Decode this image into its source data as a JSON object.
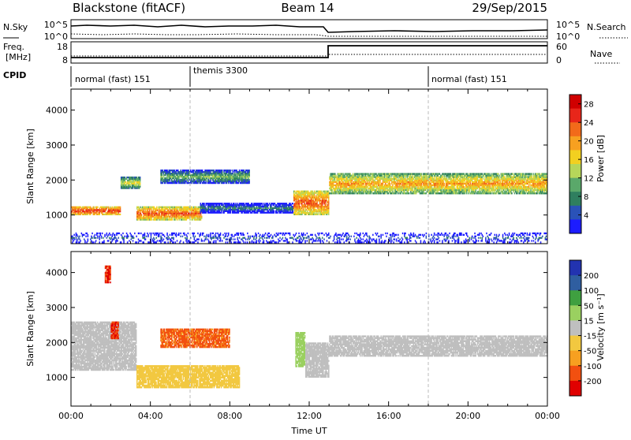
{
  "header": {
    "radar": "Blackstone (fitACF)",
    "beam": "Beam 14",
    "date": "29/Sep/2015"
  },
  "noise_panel": {
    "left_label": "N.Sky",
    "left_ticks": [
      "10^5",
      "10^0"
    ],
    "right_ticks": [
      "10^5",
      "10^0"
    ],
    "right_label": "N.Search"
  },
  "freq_panel": {
    "left_label_1": "Freq.",
    "left_label_2": "[MHz]",
    "left_ticks": [
      "18",
      "8"
    ],
    "right_ticks": [
      "60",
      "0"
    ],
    "right_label": "Nave"
  },
  "cpid_panel": {
    "label": "CPID",
    "segments": [
      {
        "text": "normal (fast) 151",
        "start_hour": 0
      },
      {
        "text": "themis 3300",
        "start_hour": 6
      },
      {
        "text": "normal (fast) 151",
        "start_hour": 18
      }
    ]
  },
  "chart_data": [
    {
      "type": "heatmap",
      "name": "power",
      "ylabel": "Slant Range [km]",
      "xlim": [
        0,
        24
      ],
      "ylim": [
        180,
        4600
      ],
      "yticks": [
        "1000",
        "2000",
        "3000",
        "4000"
      ],
      "colorbar": {
        "label": "Power [dB]",
        "ticks": [
          "4",
          "8",
          "12",
          "16",
          "20",
          "24",
          "28"
        ],
        "range": [
          0,
          30
        ]
      },
      "features": [
        {
          "desc": "band",
          "hour_start": 0.0,
          "hour_end": 2.5,
          "range_km": [
            1000,
            1250
          ],
          "power_db": 26
        },
        {
          "desc": "band",
          "hour_start": 2.5,
          "hour_end": 3.5,
          "range_km": [
            1750,
            2100
          ],
          "power_db": 16
        },
        {
          "desc": "band",
          "hour_start": 3.3,
          "hour_end": 6.6,
          "range_km": [
            850,
            1250
          ],
          "power_db": 24
        },
        {
          "desc": "band",
          "hour_start": 4.5,
          "hour_end": 9.0,
          "range_km": [
            1900,
            2300
          ],
          "power_db": 12
        },
        {
          "desc": "band",
          "hour_start": 6.5,
          "hour_end": 11.2,
          "range_km": [
            1050,
            1350
          ],
          "power_db": 8
        },
        {
          "desc": "band",
          "hour_start": 11.2,
          "hour_end": 13.0,
          "range_km": [
            1000,
            1700
          ],
          "power_db": 24
        },
        {
          "desc": "band",
          "hour_start": 13.0,
          "hour_end": 24.0,
          "range_km": [
            1600,
            2200
          ],
          "power_db": 20
        },
        {
          "desc": "sparse",
          "hour_start": 0.0,
          "hour_end": 24.0,
          "range_km": [
            200,
            500
          ],
          "power_db": 6
        }
      ]
    },
    {
      "type": "heatmap",
      "name": "velocity",
      "ylabel": "Slant Range [km]",
      "xlabel": "Time UT",
      "xlim": [
        0,
        24
      ],
      "ylim": [
        180,
        4600
      ],
      "xticks": [
        "00:00",
        "04:00",
        "08:00",
        "12:00",
        "16:00",
        "20:00",
        "00:00"
      ],
      "yticks": [
        "1000",
        "2000",
        "3000",
        "4000"
      ],
      "colorbar": {
        "label": "Velocity [m s⁻¹]",
        "ticks": [
          "200",
          "100",
          "50",
          "15",
          "-15",
          "-50",
          "-100",
          "-200"
        ]
      },
      "features": [
        {
          "desc": "ground scatter",
          "hour_start": 0.0,
          "hour_end": 3.3,
          "range_km": [
            1200,
            2600
          ],
          "velocity": 0
        },
        {
          "desc": "negative",
          "hour_start": 1.7,
          "hour_end": 2.0,
          "range_km": [
            3700,
            4200
          ],
          "velocity": -200
        },
        {
          "desc": "negative",
          "hour_start": 2.0,
          "hour_end": 2.4,
          "range_km": [
            2100,
            2600
          ],
          "velocity": -200
        },
        {
          "desc": "negative",
          "hour_start": 3.3,
          "hour_end": 8.5,
          "range_km": [
            700,
            1350
          ],
          "velocity": -30
        },
        {
          "desc": "negative",
          "hour_start": 4.5,
          "hour_end": 8.0,
          "range_km": [
            1850,
            2400
          ],
          "velocity": -120
        },
        {
          "desc": "positive",
          "hour_start": 11.3,
          "hour_end": 11.8,
          "range_km": [
            1300,
            2300
          ],
          "velocity": 30
        },
        {
          "desc": "ground scatter",
          "hour_start": 11.8,
          "hour_end": 13.0,
          "range_km": [
            1000,
            2000
          ],
          "velocity": 0
        },
        {
          "desc": "ground scatter",
          "hour_start": 13.0,
          "hour_end": 24.0,
          "range_km": [
            1600,
            2200
          ],
          "velocity": 0
        }
      ]
    }
  ]
}
